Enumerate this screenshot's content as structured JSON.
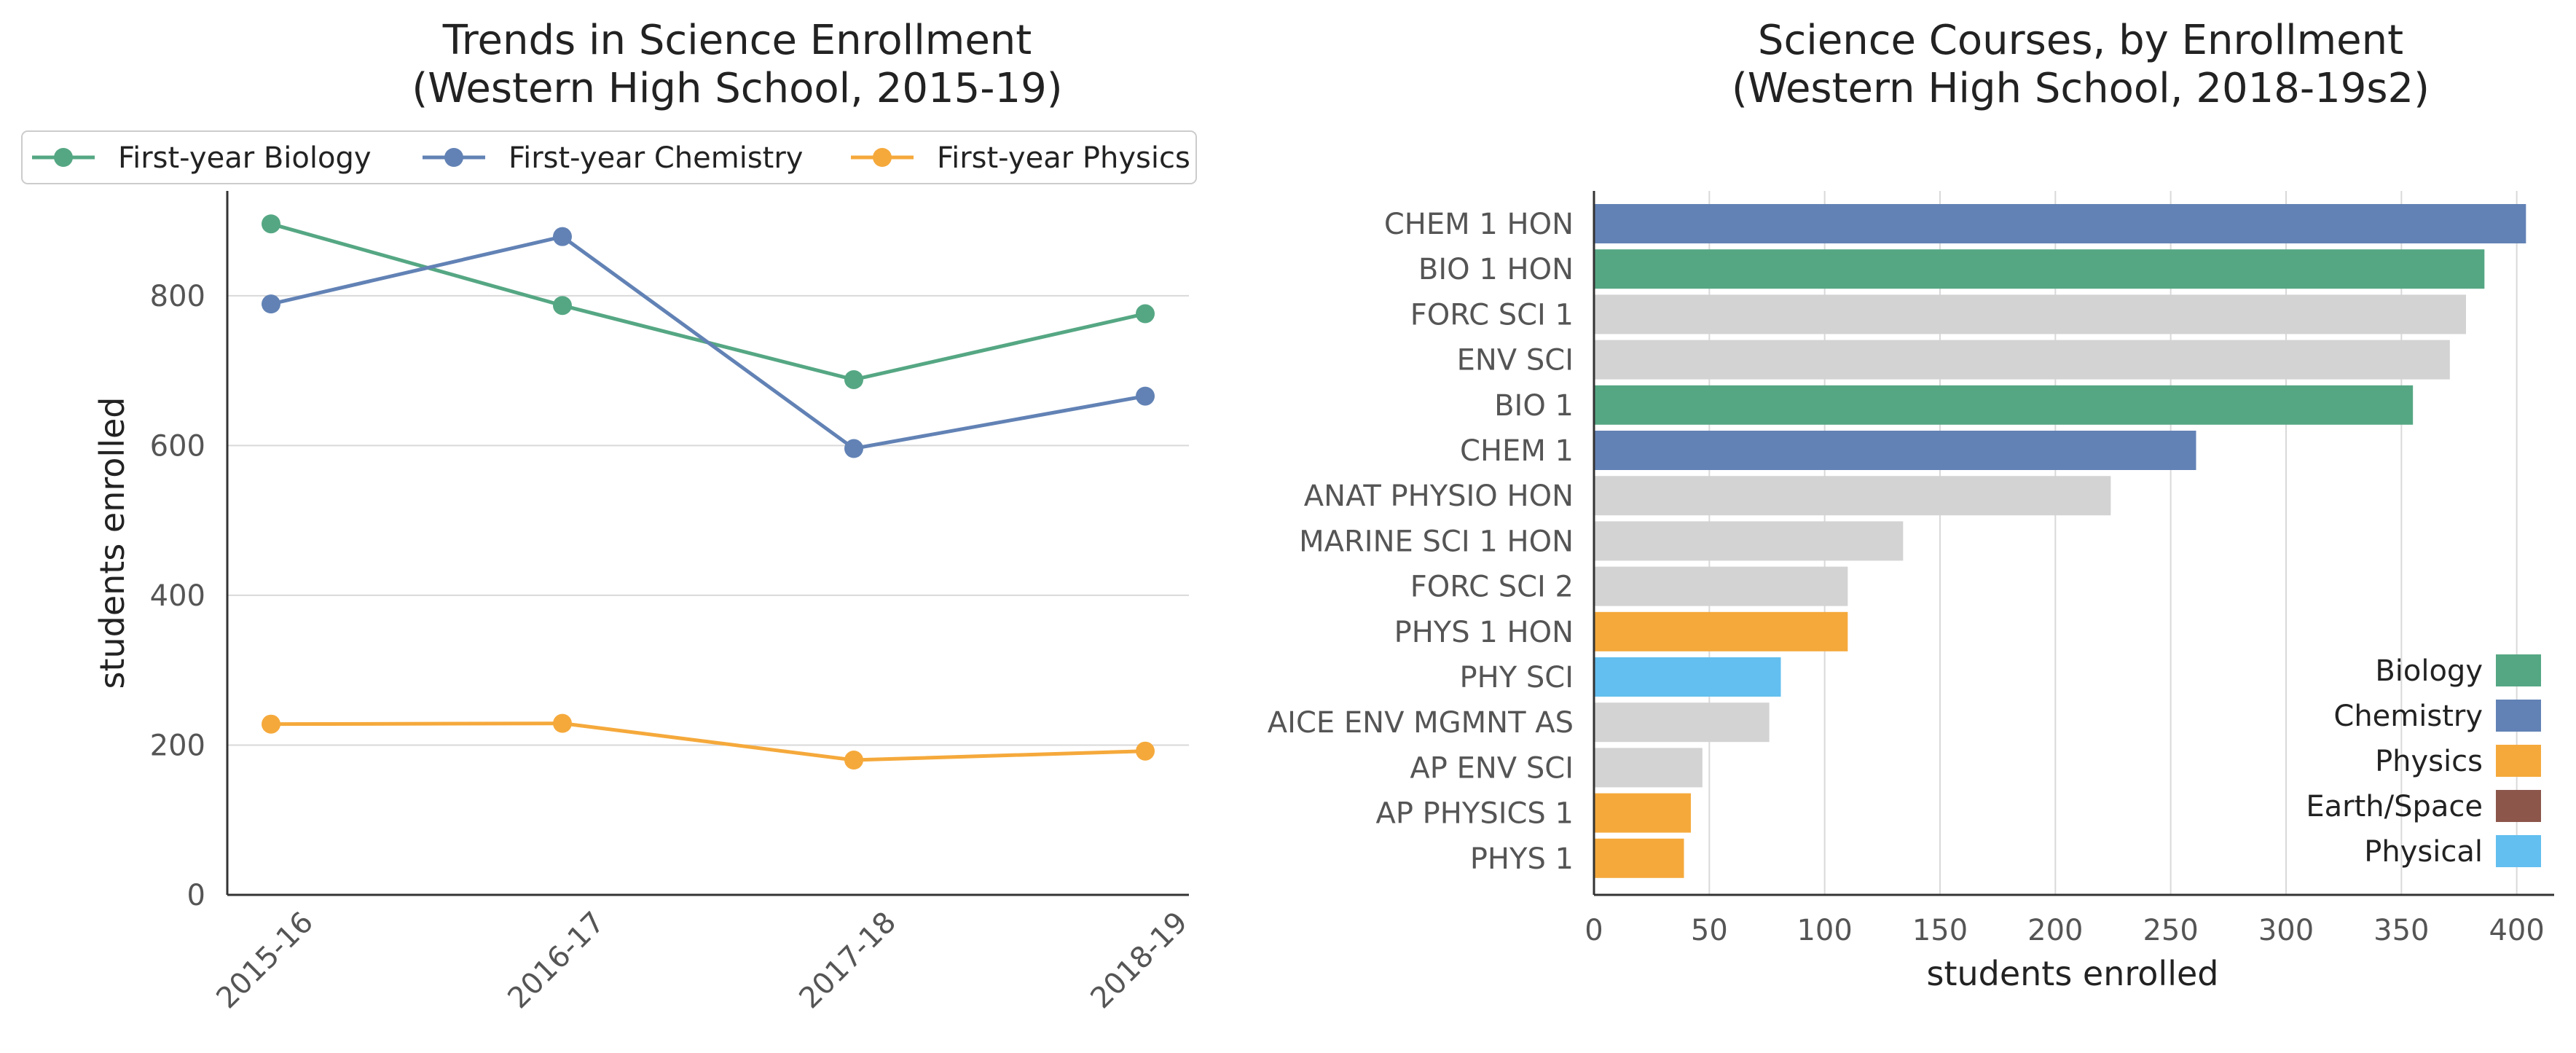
{
  "chart_data": [
    {
      "type": "line",
      "title": [
        "Trends in Science Enrollment",
        "(Western High School, 2015-19)"
      ],
      "xlabel": "",
      "ylabel": "students enrolled",
      "categories": [
        "2015-16",
        "2016-17",
        "2017-18",
        "2018-19"
      ],
      "ylim": [
        0,
        940
      ],
      "yticks": [
        0,
        200,
        400,
        600,
        800
      ],
      "grid": "horizontal",
      "legend": "top",
      "series": [
        {
          "name": "First-year Biology",
          "color": "#55a783",
          "values": [
            896,
            787,
            688,
            776
          ]
        },
        {
          "name": "First-year Chemistry",
          "color": "#6282b5",
          "values": [
            789,
            879,
            596,
            666
          ]
        },
        {
          "name": "First-year Physics",
          "color": "#f5a93b",
          "values": [
            228,
            229,
            180,
            192
          ]
        }
      ]
    },
    {
      "type": "bar",
      "orientation": "horizontal",
      "title": [
        "Science Courses, by Enrollment",
        "(Western High School, 2018-19s2)"
      ],
      "xlabel": "students enrolled",
      "ylabel": "",
      "xlim": [
        0,
        420
      ],
      "xticks": [
        0,
        50,
        100,
        150,
        200,
        250,
        300,
        350,
        400
      ],
      "grid": "vertical",
      "legend": "right",
      "categories": [
        "CHEM 1 HON",
        "BIO 1 HON",
        "FORC SCI 1",
        "ENV SCI",
        "BIO 1",
        "CHEM 1",
        "ANAT PHYSIO HON",
        "MARINE SCI 1 HON",
        "FORC SCI 2",
        "PHYS 1 HON",
        "PHY SCI",
        "AICE ENV MGMNT AS",
        "AP ENV SCI",
        "AP PHYSICS 1",
        "PHYS 1"
      ],
      "values": [
        404,
        386,
        378,
        371,
        355,
        261,
        224,
        134,
        110,
        110,
        81,
        76,
        47,
        42,
        39
      ],
      "groups": [
        "Chemistry",
        "Biology",
        "Other",
        "Other",
        "Biology",
        "Chemistry",
        "Other",
        "Other",
        "Other",
        "Physics",
        "Physical",
        "Other",
        "Other",
        "Physics",
        "Physics"
      ],
      "group_colors": {
        "Biology": "#55a783",
        "Chemistry": "#6282b5",
        "Physics": "#f5a93b",
        "Earth/Space": "#8c564b",
        "Physical": "#63bfef",
        "Other": "#d3d3d3"
      },
      "legend_entries": [
        "Biology",
        "Chemistry",
        "Physics",
        "Earth/Space",
        "Physical"
      ]
    }
  ]
}
